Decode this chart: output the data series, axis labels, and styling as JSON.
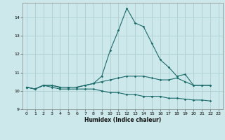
{
  "x": [
    0,
    1,
    2,
    3,
    4,
    5,
    6,
    7,
    8,
    9,
    10,
    11,
    12,
    13,
    14,
    15,
    16,
    17,
    18,
    19,
    20,
    21,
    22,
    23
  ],
  "line1": [
    10.2,
    10.1,
    10.3,
    10.3,
    10.2,
    10.2,
    10.2,
    10.3,
    10.4,
    10.8,
    12.2,
    13.3,
    14.5,
    13.7,
    13.5,
    12.6,
    11.7,
    11.3,
    10.8,
    10.9,
    10.3,
    10.3,
    10.3,
    null
  ],
  "line2": [
    10.2,
    10.1,
    10.3,
    10.3,
    10.2,
    10.2,
    10.2,
    10.3,
    10.4,
    10.5,
    10.6,
    10.7,
    10.8,
    10.8,
    10.8,
    10.7,
    10.6,
    10.6,
    10.7,
    10.5,
    10.3,
    10.3,
    10.3,
    null
  ],
  "line3": [
    10.2,
    10.1,
    10.3,
    10.2,
    10.1,
    10.1,
    10.1,
    10.1,
    10.1,
    10.0,
    9.9,
    9.9,
    9.8,
    9.8,
    9.7,
    9.7,
    9.7,
    9.6,
    9.6,
    9.55,
    9.5,
    9.5,
    9.45,
    null
  ],
  "bg_color": "#cce8ea",
  "grid_color": "#aed0d3",
  "line_color": "#1a6b6b",
  "xlabel": "Humidex (Indice chaleur)",
  "ylim": [
    9.0,
    14.8
  ],
  "xlim": [
    -0.5,
    23.5
  ],
  "yticks": [
    9,
    10,
    11,
    12,
    13,
    14
  ],
  "xticks": [
    0,
    1,
    2,
    3,
    4,
    5,
    6,
    7,
    8,
    9,
    10,
    11,
    12,
    13,
    14,
    15,
    16,
    17,
    18,
    19,
    20,
    21,
    22,
    23
  ]
}
